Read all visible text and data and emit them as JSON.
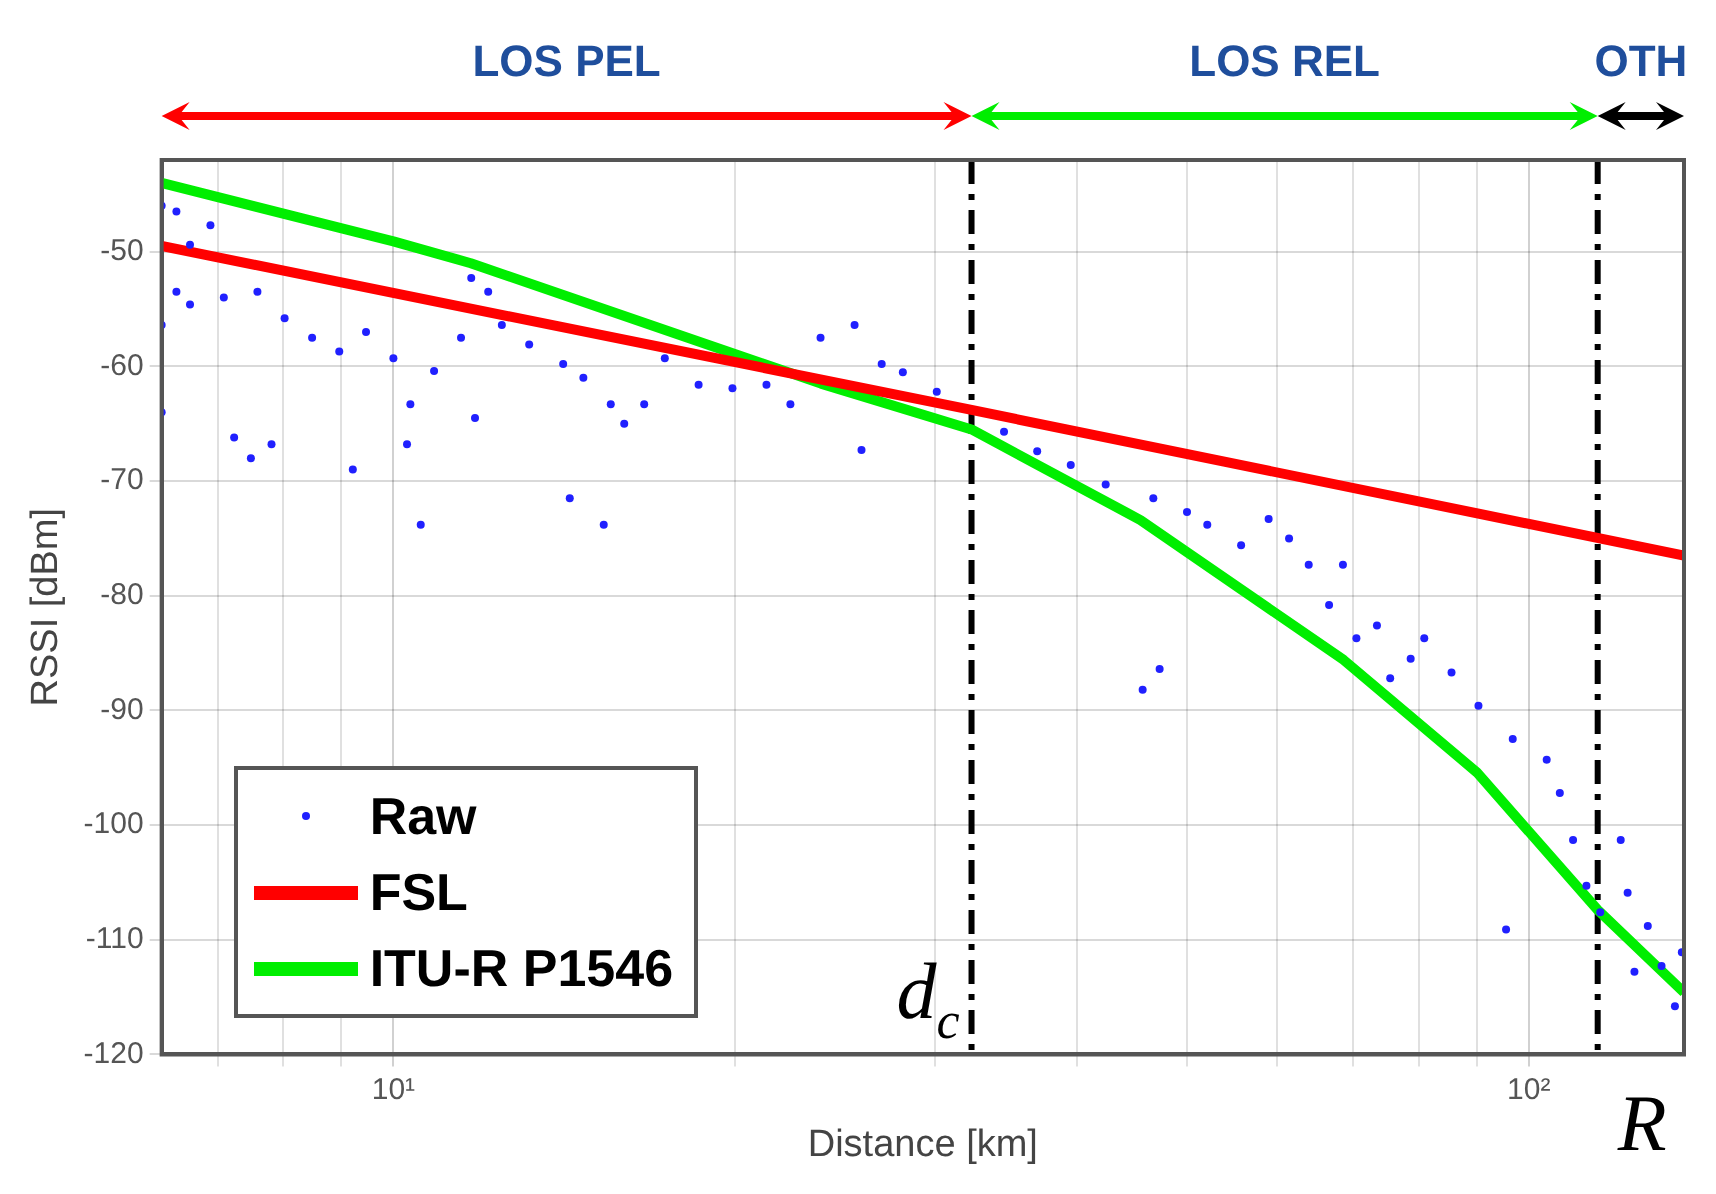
{
  "chart_data": {
    "type": "scatter",
    "xlabel": "Distance [km]",
    "ylabel": "RSSI [dBm]",
    "log": "x",
    "xlim": [
      6.25,
      137
    ],
    "ylim": [
      -120,
      -42
    ],
    "xticks": [
      {
        "value": 7,
        "label": null
      },
      {
        "value": 8,
        "label": null
      },
      {
        "value": 9,
        "label": null
      },
      {
        "value": 10,
        "label": "10¹"
      },
      {
        "value": 20,
        "label": null
      },
      {
        "value": 30,
        "label": null
      },
      {
        "value": 40,
        "label": null
      },
      {
        "value": 50,
        "label": null
      },
      {
        "value": 60,
        "label": null
      },
      {
        "value": 70,
        "label": null
      },
      {
        "value": 80,
        "label": null
      },
      {
        "value": 90,
        "label": null
      },
      {
        "value": 100,
        "label": "10²"
      }
    ],
    "yticks": [
      -120,
      -110,
      -100,
      -90,
      -80,
      -70,
      -60,
      -50
    ],
    "grid": true,
    "legend": "bottom left",
    "series": [
      {
        "name": "Raw",
        "type": "scatter",
        "marker": "circle",
        "color": "#2020ff",
        "x": [
          6.25,
          6.25,
          6.25,
          6.44,
          6.44,
          6.62,
          6.62,
          6.9,
          7.09,
          7.24,
          7.49,
          7.81,
          7.59,
          8.02,
          8.48,
          8.96,
          9.21,
          9.46,
          10,
          10.28,
          10.35,
          10.57,
          10.86,
          11.47,
          11.71,
          11.8,
          12.12,
          12.46,
          13.17,
          14.11,
          14.3,
          14.7,
          15.32,
          15.54,
          15.97,
          16.63,
          17.34,
          18.57,
          19.89,
          21.31,
          22.37,
          23.78,
          25.48,
          25.84,
          26.92,
          28.1,
          30.1,
          34.5,
          36.9,
          39.5,
          42.4,
          45.7,
          46.7,
          47.3,
          50,
          52.1,
          55.8,
          59,
          61.5,
          64,
          66.7,
          68.6,
          70.5,
          73.5,
          75.5,
          78.7,
          80.9,
          85.5,
          90.3,
          95.5,
          96.8,
          103.7,
          106.5,
          109.4,
          112.4,
          115.6,
          120.5,
          122.2,
          123.9,
          127.3,
          130.9,
          134.5,
          136.4
        ],
        "values": [
          -46,
          -56.4,
          -64,
          -46.5,
          -53.5,
          -49.4,
          -54.6,
          -47.7,
          -54,
          -66.2,
          -68,
          -66.8,
          -53.5,
          -55.8,
          -57.5,
          -58.7,
          -69,
          -57,
          -59.3,
          -66.8,
          -63.3,
          -73.8,
          -60.4,
          -57.5,
          -52.3,
          -64.5,
          -53.5,
          -56.4,
          -58.1,
          -59.8,
          -71.5,
          -61,
          -73.8,
          -63.3,
          -65,
          -63.3,
          -59.3,
          -61.6,
          -61.9,
          -61.6,
          -63.3,
          -57.5,
          -56.4,
          -67.3,
          -59.8,
          -60.5,
          -62.2,
          -65.7,
          -67.4,
          -68.6,
          -70.3,
          -88.2,
          -71.5,
          -86.4,
          -72.7,
          -73.8,
          -75.6,
          -73.3,
          -75,
          -77.3,
          -80.8,
          -77.3,
          -83.7,
          -82.6,
          -87.2,
          -85.5,
          -83.7,
          -86.7,
          -89.6,
          -109.1,
          -92.5,
          -94.3,
          -97.2,
          -101.3,
          -105.3,
          -107.6,
          -101.3,
          -105.9,
          -112.8,
          -108.8,
          -112.3,
          -115.8,
          -111.1
        ]
      },
      {
        "name": "FSL",
        "type": "line",
        "marker": "none",
        "line_style": "solid",
        "color": "#ff0000",
        "x": [
          6.25,
          32.3,
          137
        ],
        "values": [
          -49.5,
          -63.8,
          -76.5
        ]
      },
      {
        "name": "ITU-R P1546",
        "type": "line",
        "marker": "none",
        "line_style": "solid",
        "color": "#00ee00",
        "x": [
          6.25,
          10,
          11.7,
          23.8,
          32.3,
          45.5,
          68.7,
          90,
          115,
          137
        ],
        "values": [
          -44,
          -49.1,
          -51,
          -61.5,
          -65.5,
          -73.4,
          -85.6,
          -95.4,
          -107.4,
          -114.6
        ]
      }
    ],
    "ref_lines": [
      {
        "axis": "x",
        "value": 32.3,
        "label": "d$_{c}$",
        "color": "#000000",
        "line_style": "dashed"
      },
      {
        "axis": "x",
        "value": 115,
        "label": "R",
        "color": "#000000",
        "line_style": "dashed"
      }
    ],
    "annotations": [
      "LOS PEL",
      "LOS REL",
      "OTH"
    ]
  }
}
